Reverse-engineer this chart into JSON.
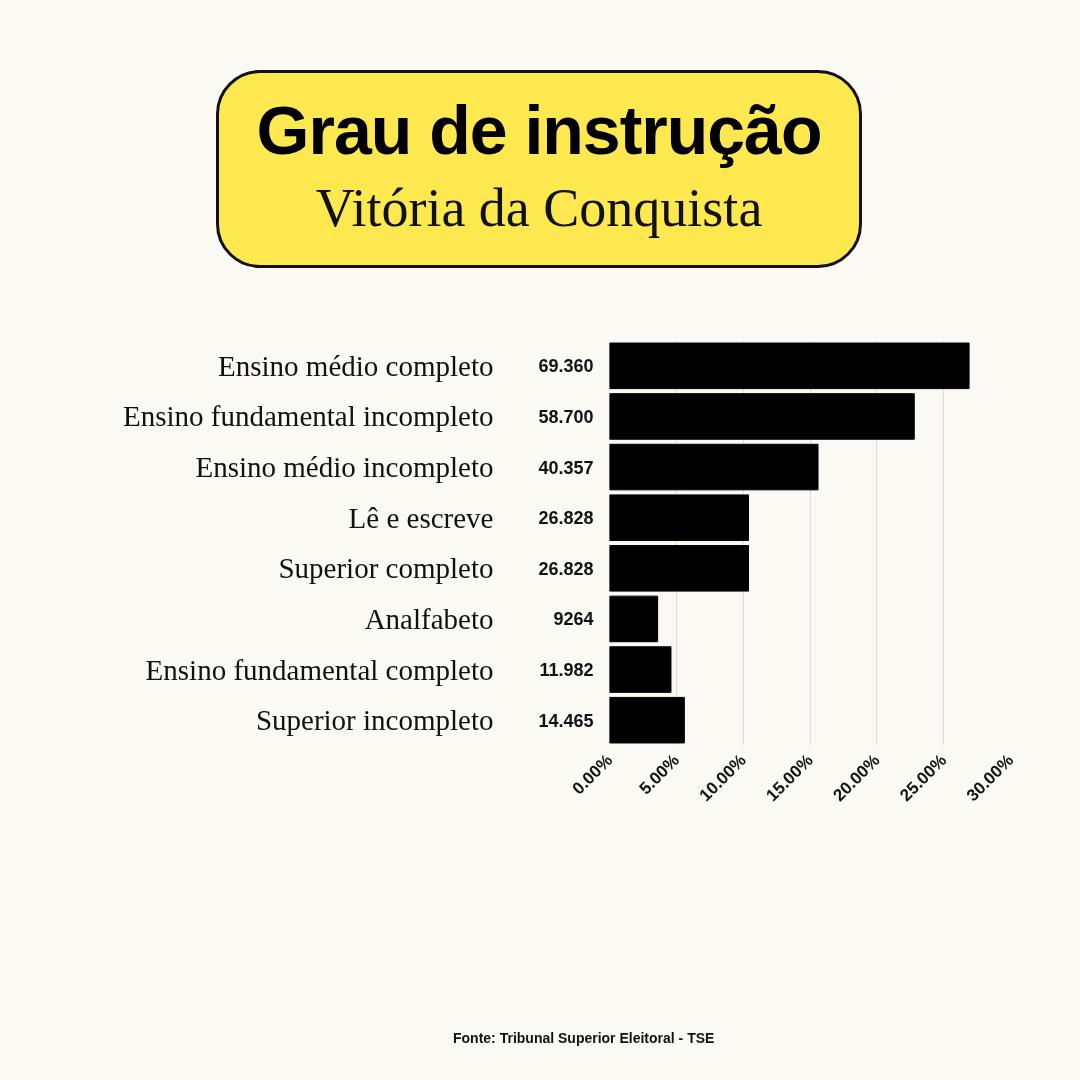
{
  "chart_data": {
    "type": "bar",
    "orientation": "horizontal",
    "title": "Grau de instrução",
    "subtitle": "Vitória da Conquista",
    "categories": [
      "Ensino médio completo",
      "Ensino fundamental incompleto",
      "Ensino médio incompleto",
      "Lê e escreve",
      "Superior completo",
      "Analfabeto",
      "Ensino fundamental completo",
      "Superior incompleto"
    ],
    "values": [
      26.9,
      22.8,
      15.6,
      10.4,
      10.4,
      3.6,
      4.6,
      5.6
    ],
    "color": "#000000",
    "xlim": [
      0,
      30
    ],
    "xticks": [
      {
        "value": 0,
        "label": "0.00%"
      },
      {
        "value": 5,
        "label": "5.00%"
      },
      {
        "value": 10,
        "label": "10.00%"
      },
      {
        "value": 15,
        "label": "15.00%"
      },
      {
        "value": 20,
        "label": "20.00%"
      },
      {
        "value": 25,
        "label": "25.00%"
      },
      {
        "value": 30,
        "label": "30.00%"
      }
    ],
    "grid": "x",
    "annotations": [
      "69.360",
      "58.700",
      "40.357",
      "26.828",
      "26.828",
      "9264",
      "11.982",
      "14.465",
      "Fonte: Tribunal Superior Eleitoral - TSE"
    ]
  }
}
